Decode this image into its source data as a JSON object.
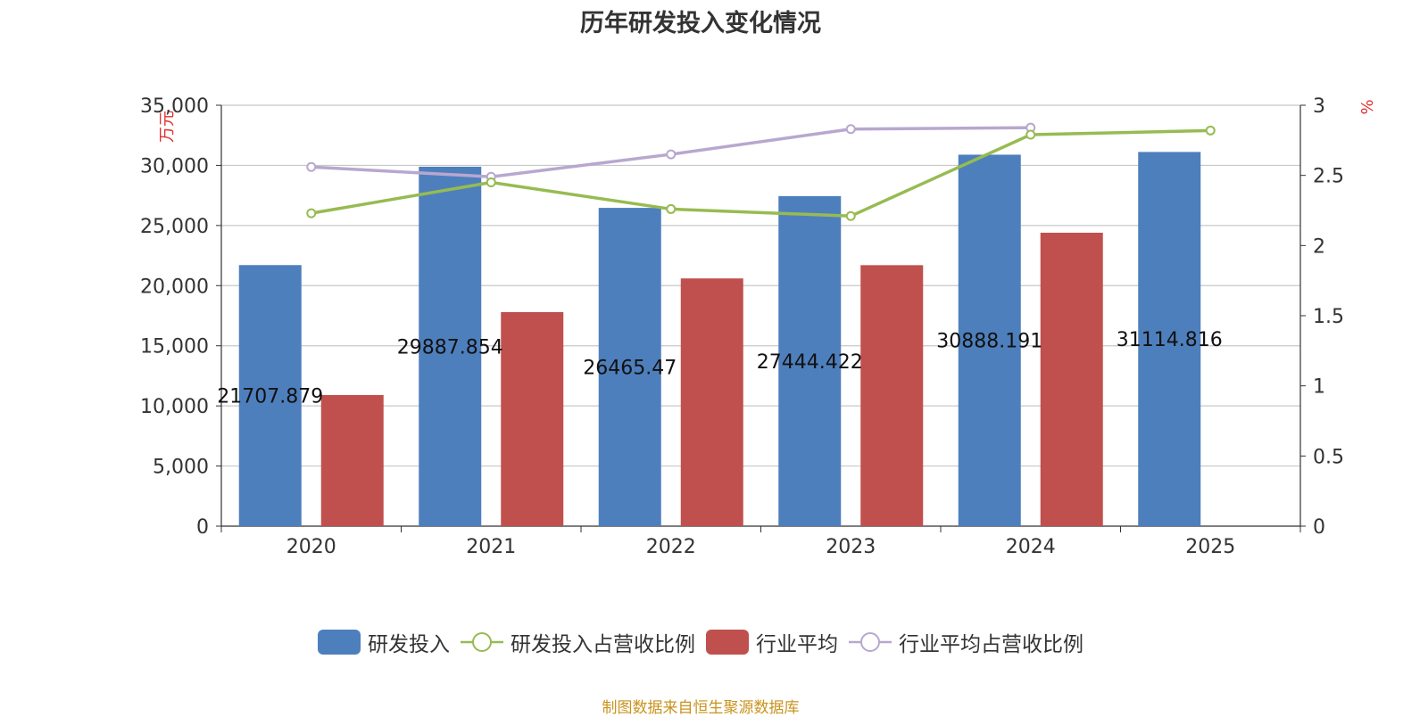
{
  "title": "历年研发投入变化情况",
  "source": "制图数据来自恒生聚源数据库",
  "colors": {
    "rd": "#4e7fbd",
    "rd_ratio": "#97bb52",
    "industry": "#c0504d",
    "industry_ratio": "#b8a7cf"
  },
  "chart_data": {
    "type": "bar",
    "categories": [
      "2020",
      "2021",
      "2022",
      "2023",
      "2024",
      "2025"
    ],
    "y_left": {
      "label": "万元",
      "ticks": [
        "0",
        "5,000",
        "10,000",
        "15,000",
        "20,000",
        "25,000",
        "30,000",
        "35,000"
      ],
      "ylim": [
        0,
        35000
      ]
    },
    "y_right": {
      "label": "%",
      "ticks": [
        "0",
        "0.5",
        "1",
        "1.5",
        "2",
        "2.5",
        "3"
      ],
      "ylim": [
        0,
        3
      ]
    },
    "series": [
      {
        "name": "研发投入",
        "type": "bar",
        "axis": "left",
        "values": [
          21707.879,
          29887.854,
          26465.47,
          27444.422,
          30888.191,
          31114.816
        ],
        "labels": [
          "21707.879",
          "29887.854",
          "26465.47",
          "27444.422",
          "30888.191",
          "31114.816"
        ]
      },
      {
        "name": "研发投入占营收比例",
        "type": "line",
        "axis": "right",
        "values": [
          2.23,
          2.45,
          2.26,
          2.21,
          2.79,
          2.82
        ]
      },
      {
        "name": "行业平均",
        "type": "bar",
        "axis": "left",
        "values": [
          10900,
          17800,
          20600,
          21700,
          24400,
          null
        ]
      },
      {
        "name": "行业平均占营收比例",
        "type": "line",
        "axis": "right",
        "values": [
          2.56,
          2.49,
          2.65,
          2.83,
          2.84,
          null
        ]
      }
    ],
    "grid": true,
    "legend_position": "bottom"
  }
}
